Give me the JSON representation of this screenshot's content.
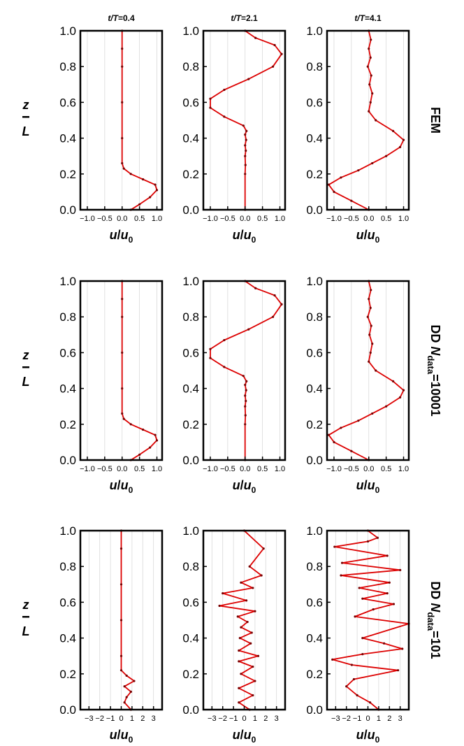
{
  "colors": {
    "series": "#dd0000",
    "frame": "#000000",
    "grid": "#d8d8d8"
  },
  "chart_data": [
    {
      "type": "line",
      "row_label": {
        "main": "FEM",
        "sub": ""
      },
      "title": "t/T=0.4",
      "xlabel": "u/u0",
      "ylabel": "z/L",
      "xlim": [
        -1.2,
        1.15
      ],
      "ylim": [
        0,
        1
      ],
      "grid": true,
      "xticks": [
        {
          "v": -1,
          "label": "−1.0"
        },
        {
          "v": -0.5,
          "label": "−0.5"
        },
        {
          "v": 0,
          "label": "0.0"
        },
        {
          "v": 0.5,
          "label": "0.5"
        },
        {
          "v": 1,
          "label": "1.0"
        }
      ],
      "yticks": [
        {
          "v": 0,
          "label": "0.0"
        },
        {
          "v": 0.2,
          "label": "0.2"
        },
        {
          "v": 0.4,
          "label": "0.4"
        },
        {
          "v": 0.6,
          "label": "0.6"
        },
        {
          "v": 0.8,
          "label": "0.8"
        },
        {
          "v": 1,
          "label": "1.0"
        }
      ],
      "series": [
        {
          "x": [
            0.25,
            0.5,
            0.8,
            1.0,
            0.95,
            0.6,
            0.25,
            0.05,
            0.0,
            0.0,
            0.0,
            0.0,
            0.0,
            0.0
          ],
          "y": [
            0,
            0.03,
            0.07,
            0.11,
            0.14,
            0.17,
            0.2,
            0.23,
            0.26,
            0.4,
            0.6,
            0.8,
            0.9,
            1.0
          ]
        }
      ]
    },
    {
      "type": "line",
      "row_label": {
        "main": "FEM",
        "sub": ""
      },
      "title": "t/T=2.1",
      "xlabel": "u/u0",
      "ylabel": "z/L",
      "xlim": [
        -1.2,
        1.15
      ],
      "ylim": [
        0,
        1
      ],
      "grid": true,
      "xticks": [
        {
          "v": -1,
          "label": "−1.0"
        },
        {
          "v": -0.5,
          "label": "−0.5"
        },
        {
          "v": 0,
          "label": "0.0"
        },
        {
          "v": 0.5,
          "label": "0.5"
        },
        {
          "v": 1,
          "label": "1.0"
        }
      ],
      "yticks": [
        {
          "v": 0,
          "label": "0.0"
        },
        {
          "v": 0.2,
          "label": "0.2"
        },
        {
          "v": 0.4,
          "label": "0.4"
        },
        {
          "v": 0.6,
          "label": "0.6"
        },
        {
          "v": 0.8,
          "label": "0.8"
        },
        {
          "v": 1,
          "label": "1.0"
        }
      ],
      "series": [
        {
          "x": [
            0.0,
            0.0,
            0.01,
            0.0,
            0.02,
            0.0,
            0.03,
            0.0,
            0.04,
            -0.05,
            -0.6,
            -1.0,
            -1.0,
            -0.6,
            0.1,
            0.8,
            1.05,
            0.85,
            0.3,
            0.0
          ],
          "y": [
            0,
            0.2,
            0.25,
            0.3,
            0.33,
            0.36,
            0.39,
            0.42,
            0.44,
            0.47,
            0.52,
            0.57,
            0.62,
            0.67,
            0.73,
            0.8,
            0.87,
            0.92,
            0.96,
            1.0
          ]
        }
      ]
    },
    {
      "type": "line",
      "row_label": {
        "main": "FEM",
        "sub": ""
      },
      "title": "t/T=4.1",
      "xlabel": "u/u0",
      "ylabel": "z/L",
      "xlim": [
        -1.2,
        1.15
      ],
      "ylim": [
        0,
        1
      ],
      "grid": true,
      "xticks": [
        {
          "v": -1,
          "label": "−1.0"
        },
        {
          "v": -0.5,
          "label": "−0.5"
        },
        {
          "v": 0,
          "label": "0.0"
        },
        {
          "v": 0.5,
          "label": "0.5"
        },
        {
          "v": 1,
          "label": "1.0"
        }
      ],
      "yticks": [
        {
          "v": 0,
          "label": "0.0"
        },
        {
          "v": 0.2,
          "label": "0.2"
        },
        {
          "v": 0.4,
          "label": "0.4"
        },
        {
          "v": 0.6,
          "label": "0.6"
        },
        {
          "v": 0.8,
          "label": "0.8"
        },
        {
          "v": 1,
          "label": "1.0"
        }
      ],
      "series": [
        {
          "x": [
            0.0,
            -0.5,
            -1.0,
            -1.15,
            -0.8,
            -0.3,
            0.1,
            0.5,
            0.9,
            1.0,
            0.7,
            0.2,
            0.0,
            0.05,
            0.1,
            0.02,
            0.07,
            -0.03,
            0.05,
            0.0,
            0.06,
            0.0
          ],
          "y": [
            0,
            0.05,
            0.1,
            0.14,
            0.18,
            0.22,
            0.26,
            0.3,
            0.35,
            0.39,
            0.44,
            0.5,
            0.55,
            0.6,
            0.65,
            0.7,
            0.75,
            0.8,
            0.85,
            0.9,
            0.95,
            1.0
          ]
        }
      ]
    },
    {
      "type": "line",
      "row_label": {
        "main": "DD N",
        "sub": "data",
        "suffix": "=10001"
      },
      "title": "",
      "xlabel": "u/u0",
      "ylabel": "z/L",
      "xlim": [
        -1.2,
        1.15
      ],
      "ylim": [
        0,
        1
      ],
      "grid": true,
      "xticks": [
        {
          "v": -1,
          "label": "−1.0"
        },
        {
          "v": -0.5,
          "label": "−0.5"
        },
        {
          "v": 0,
          "label": "0.0"
        },
        {
          "v": 0.5,
          "label": "0.5"
        },
        {
          "v": 1,
          "label": "1.0"
        }
      ],
      "yticks": [
        {
          "v": 0,
          "label": "0.0"
        },
        {
          "v": 0.2,
          "label": "0.2"
        },
        {
          "v": 0.4,
          "label": "0.4"
        },
        {
          "v": 0.6,
          "label": "0.6"
        },
        {
          "v": 0.8,
          "label": "0.8"
        },
        {
          "v": 1,
          "label": "1.0"
        }
      ],
      "series": [
        {
          "x": [
            0.25,
            0.5,
            0.8,
            1.0,
            0.95,
            0.6,
            0.25,
            0.05,
            0.0,
            0.0,
            0.0,
            0.0,
            0.0,
            0.0
          ],
          "y": [
            0,
            0.03,
            0.07,
            0.11,
            0.14,
            0.17,
            0.2,
            0.23,
            0.26,
            0.4,
            0.6,
            0.8,
            0.9,
            1.0
          ]
        }
      ]
    },
    {
      "type": "line",
      "row_label": {
        "main": "DD N",
        "sub": "data",
        "suffix": "=10001"
      },
      "title": "",
      "xlabel": "u/u0",
      "ylabel": "z/L",
      "xlim": [
        -1.2,
        1.15
      ],
      "ylim": [
        0,
        1
      ],
      "grid": true,
      "xticks": [
        {
          "v": -1,
          "label": "−1.0"
        },
        {
          "v": -0.5,
          "label": "−0.5"
        },
        {
          "v": 0,
          "label": "0.0"
        },
        {
          "v": 0.5,
          "label": "0.5"
        },
        {
          "v": 1,
          "label": "1.0"
        }
      ],
      "yticks": [
        {
          "v": 0,
          "label": "0.0"
        },
        {
          "v": 0.2,
          "label": "0.2"
        },
        {
          "v": 0.4,
          "label": "0.4"
        },
        {
          "v": 0.6,
          "label": "0.6"
        },
        {
          "v": 0.8,
          "label": "0.8"
        },
        {
          "v": 1,
          "label": "1.0"
        }
      ],
      "series": [
        {
          "x": [
            0.0,
            0.0,
            0.01,
            0.0,
            0.02,
            0.0,
            0.03,
            0.0,
            0.04,
            -0.05,
            -0.6,
            -1.0,
            -1.0,
            -0.6,
            0.1,
            0.8,
            1.05,
            0.85,
            0.3,
            0.0
          ],
          "y": [
            0,
            0.2,
            0.25,
            0.3,
            0.33,
            0.36,
            0.39,
            0.42,
            0.44,
            0.47,
            0.52,
            0.57,
            0.62,
            0.67,
            0.73,
            0.8,
            0.87,
            0.92,
            0.96,
            1.0
          ]
        }
      ]
    },
    {
      "type": "line",
      "row_label": {
        "main": "DD N",
        "sub": "data",
        "suffix": "=10001"
      },
      "title": "",
      "xlabel": "u/u0",
      "ylabel": "z/L",
      "xlim": [
        -1.2,
        1.15
      ],
      "ylim": [
        0,
        1
      ],
      "grid": true,
      "xticks": [
        {
          "v": -1,
          "label": "−1.0"
        },
        {
          "v": -0.5,
          "label": "−0.5"
        },
        {
          "v": 0,
          "label": "0.0"
        },
        {
          "v": 0.5,
          "label": "0.5"
        },
        {
          "v": 1,
          "label": "1.0"
        }
      ],
      "yticks": [
        {
          "v": 0,
          "label": "0.0"
        },
        {
          "v": 0.2,
          "label": "0.2"
        },
        {
          "v": 0.4,
          "label": "0.4"
        },
        {
          "v": 0.6,
          "label": "0.6"
        },
        {
          "v": 0.8,
          "label": "0.8"
        },
        {
          "v": 1,
          "label": "1.0"
        }
      ],
      "series": [
        {
          "x": [
            0.0,
            -0.5,
            -1.0,
            -1.15,
            -0.8,
            -0.3,
            0.1,
            0.5,
            0.9,
            1.0,
            0.7,
            0.2,
            0.0,
            0.05,
            0.1,
            0.02,
            0.07,
            -0.03,
            0.05,
            0.0,
            0.06,
            0.0
          ],
          "y": [
            0,
            0.05,
            0.1,
            0.14,
            0.18,
            0.22,
            0.26,
            0.3,
            0.35,
            0.39,
            0.44,
            0.5,
            0.55,
            0.6,
            0.65,
            0.7,
            0.75,
            0.8,
            0.85,
            0.9,
            0.95,
            1.0
          ]
        }
      ]
    },
    {
      "type": "line",
      "row_label": {
        "main": "DD N",
        "sub": "data",
        "suffix": "=101"
      },
      "title": "",
      "xlabel": "u/u0",
      "ylabel": "z/L",
      "xlim": [
        -3.8,
        3.8
      ],
      "ylim": [
        0,
        1
      ],
      "grid": true,
      "xticks": [
        {
          "v": -3,
          "label": "−3"
        },
        {
          "v": -2,
          "label": "−2"
        },
        {
          "v": -1,
          "label": "−1"
        },
        {
          "v": 0,
          "label": "0"
        },
        {
          "v": 1,
          "label": "1"
        },
        {
          "v": 2,
          "label": "2"
        },
        {
          "v": 3,
          "label": "3"
        }
      ],
      "yticks": [
        {
          "v": 0,
          "label": "0.0"
        },
        {
          "v": 0.2,
          "label": "0.2"
        },
        {
          "v": 0.4,
          "label": "0.4"
        },
        {
          "v": 0.6,
          "label": "0.6"
        },
        {
          "v": 0.8,
          "label": "0.8"
        },
        {
          "v": 1,
          "label": "1.0"
        }
      ],
      "series": [
        {
          "x": [
            0.9,
            0.3,
            0.5,
            0.9,
            0.3,
            1.2,
            0.5,
            0.0,
            0.0,
            0.0,
            0.0,
            0.0,
            0.0
          ],
          "y": [
            0,
            0.04,
            0.07,
            0.1,
            0.13,
            0.16,
            0.19,
            0.22,
            0.3,
            0.5,
            0.7,
            0.9,
            1.0
          ]
        }
      ]
    },
    {
      "type": "line",
      "row_label": {
        "main": "DD N",
        "sub": "data",
        "suffix": "=101"
      },
      "title": "",
      "xlabel": "u/u0",
      "ylabel": "z/L",
      "xlim": [
        -3.8,
        3.8
      ],
      "ylim": [
        0,
        1
      ],
      "grid": true,
      "xticks": [
        {
          "v": -3,
          "label": "−3"
        },
        {
          "v": -2,
          "label": "−2"
        },
        {
          "v": -1,
          "label": "−1"
        },
        {
          "v": 0,
          "label": "0"
        },
        {
          "v": 1,
          "label": "1"
        },
        {
          "v": 2,
          "label": "2"
        },
        {
          "v": 3,
          "label": "3"
        }
      ],
      "yticks": [
        {
          "v": 0,
          "label": "0.0"
        },
        {
          "v": 0.2,
          "label": "0.2"
        },
        {
          "v": 0.4,
          "label": "0.4"
        },
        {
          "v": 0.6,
          "label": "0.6"
        },
        {
          "v": 0.8,
          "label": "0.8"
        },
        {
          "v": 1,
          "label": "1.0"
        }
      ],
      "series": [
        {
          "x": [
            0.5,
            -0.5,
            0.8,
            -0.5,
            1.0,
            -0.3,
            0.8,
            -0.5,
            1.3,
            -0.5,
            0.6,
            -0.4,
            0.7,
            -0.3,
            0.3,
            -0.6,
            1.0,
            -2.3,
            0.2,
            -2.0,
            0.8,
            -0.3,
            1.6,
            0.5,
            1.8,
            0.0
          ],
          "y": [
            0,
            0.04,
            0.08,
            0.12,
            0.16,
            0.2,
            0.24,
            0.27,
            0.3,
            0.33,
            0.37,
            0.4,
            0.43,
            0.46,
            0.49,
            0.52,
            0.55,
            0.58,
            0.61,
            0.65,
            0.68,
            0.71,
            0.75,
            0.8,
            0.9,
            1.0
          ]
        }
      ]
    },
    {
      "type": "line",
      "row_label": {
        "main": "DD N",
        "sub": "data",
        "suffix": "=101"
      },
      "title": "",
      "xlabel": "u/u0",
      "ylabel": "z/L",
      "xlim": [
        -3.8,
        3.8
      ],
      "ylim": [
        0,
        1
      ],
      "grid": true,
      "xticks": [
        {
          "v": -3,
          "label": "−3"
        },
        {
          "v": -2,
          "label": "−2"
        },
        {
          "v": -1,
          "label": "−1"
        },
        {
          "v": 0,
          "label": "0"
        },
        {
          "v": 1,
          "label": "1"
        },
        {
          "v": 2,
          "label": "2"
        },
        {
          "v": 3,
          "label": "3"
        }
      ],
      "yticks": [
        {
          "v": 0,
          "label": "0.0"
        },
        {
          "v": 0.2,
          "label": "0.2"
        },
        {
          "v": 0.4,
          "label": "0.4"
        },
        {
          "v": 0.6,
          "label": "0.6"
        },
        {
          "v": 0.8,
          "label": "0.8"
        },
        {
          "v": 1,
          "label": "1.0"
        }
      ],
      "series": [
        {
          "x": [
            1.0,
            0.2,
            -1.0,
            -2.0,
            -1.3,
            2.8,
            -1.5,
            -3.3,
            -0.5,
            3.2,
            1.5,
            -0.5,
            3.8,
            -1.2,
            0.5,
            2.4,
            -0.5,
            1.8,
            -0.8,
            2.0,
            -2.5,
            3.0,
            -2.4,
            1.8,
            -3.1,
            0.0,
            0.9,
            0.0
          ],
          "y": [
            0,
            0.04,
            0.08,
            0.13,
            0.17,
            0.22,
            0.25,
            0.28,
            0.31,
            0.34,
            0.37,
            0.4,
            0.48,
            0.52,
            0.56,
            0.59,
            0.62,
            0.65,
            0.68,
            0.71,
            0.75,
            0.78,
            0.82,
            0.86,
            0.91,
            0.94,
            0.96,
            1.0
          ]
        }
      ]
    }
  ]
}
